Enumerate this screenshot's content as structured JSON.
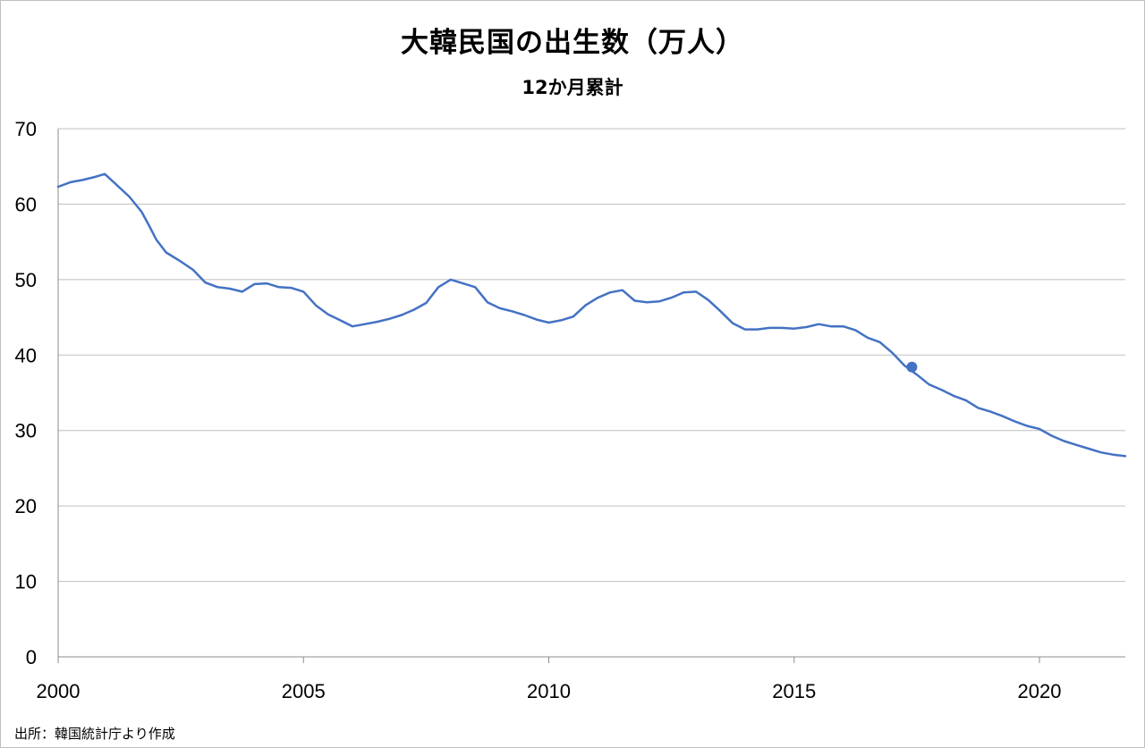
{
  "chart_data": {
    "type": "line",
    "title": "大韓民国の出生数（万人）",
    "subtitle": "12か月累計",
    "source": "出所：韓国統計庁より作成",
    "xlim": [
      2000,
      2021.75
    ],
    "ylim": [
      0,
      70
    ],
    "x_ticks": [
      "2000",
      "2005",
      "2010",
      "2015",
      "2020"
    ],
    "y_ticks": [
      "0",
      "10",
      "20",
      "30",
      "40",
      "50",
      "60",
      "70"
    ],
    "grid": "horizontal",
    "line_color": "#4472c4",
    "series": [
      {
        "x": [
          2000.0,
          2000.25,
          2000.5,
          2000.75,
          2000.95,
          2001.2,
          2001.45,
          2001.7,
          2001.85,
          2002.0,
          2002.2,
          2002.5,
          2002.75,
          2003.0,
          2003.25,
          2003.5,
          2003.75,
          2004.0,
          2004.25,
          2004.5,
          2004.75,
          2005.0,
          2005.25,
          2005.5,
          2005.75,
          2006.0,
          2006.25,
          2006.5,
          2006.75,
          2007.0,
          2007.25,
          2007.5,
          2007.75,
          2008.0,
          2008.25,
          2008.5,
          2008.75,
          2009.0,
          2009.25,
          2009.5,
          2009.75,
          2010.0,
          2010.25,
          2010.5,
          2010.75,
          2011.0,
          2011.25,
          2011.5,
          2011.75,
          2012.0,
          2012.25,
          2012.5,
          2012.75,
          2013.0,
          2013.25,
          2013.5,
          2013.75,
          2014.0,
          2014.25,
          2014.5,
          2014.75,
          2015.0,
          2015.25,
          2015.5,
          2015.75,
          2016.0,
          2016.25,
          2016.5,
          2016.75,
          2017.0,
          2017.25,
          2017.5,
          2017.75,
          2018.0,
          2018.25,
          2018.5,
          2018.75,
          2019.0,
          2019.25,
          2019.5,
          2019.75,
          2020.0,
          2020.25,
          2020.5,
          2020.75,
          2021.0,
          2021.25,
          2021.5,
          2021.75
        ],
        "y": [
          62.3,
          62.9,
          63.2,
          63.6,
          64.0,
          62.5,
          61.0,
          59.0,
          57.2,
          55.3,
          53.6,
          52.4,
          51.3,
          49.6,
          49.0,
          48.8,
          48.4,
          49.4,
          49.5,
          49.0,
          48.9,
          48.4,
          46.6,
          45.4,
          44.6,
          43.8,
          44.1,
          44.4,
          44.8,
          45.3,
          46.0,
          46.9,
          49.0,
          50.0,
          49.5,
          49.0,
          47.0,
          46.2,
          45.8,
          45.3,
          44.7,
          44.3,
          44.6,
          45.1,
          46.6,
          47.6,
          48.3,
          48.6,
          47.2,
          47.0,
          47.1,
          47.6,
          48.3,
          48.4,
          47.3,
          45.8,
          44.2,
          43.4,
          43.4,
          43.6,
          43.6,
          43.5,
          43.7,
          44.1,
          43.8,
          43.8,
          43.3,
          42.3,
          41.7,
          40.3,
          38.6,
          37.4,
          36.1,
          35.4,
          34.6,
          34.0,
          33.0,
          32.5,
          31.9,
          31.2,
          30.6,
          30.2,
          29.3,
          28.6,
          28.1,
          27.6,
          27.1,
          26.8,
          26.6
        ]
      }
    ],
    "highlight_point": {
      "x": 2017.4,
      "y": 38.4
    }
  }
}
